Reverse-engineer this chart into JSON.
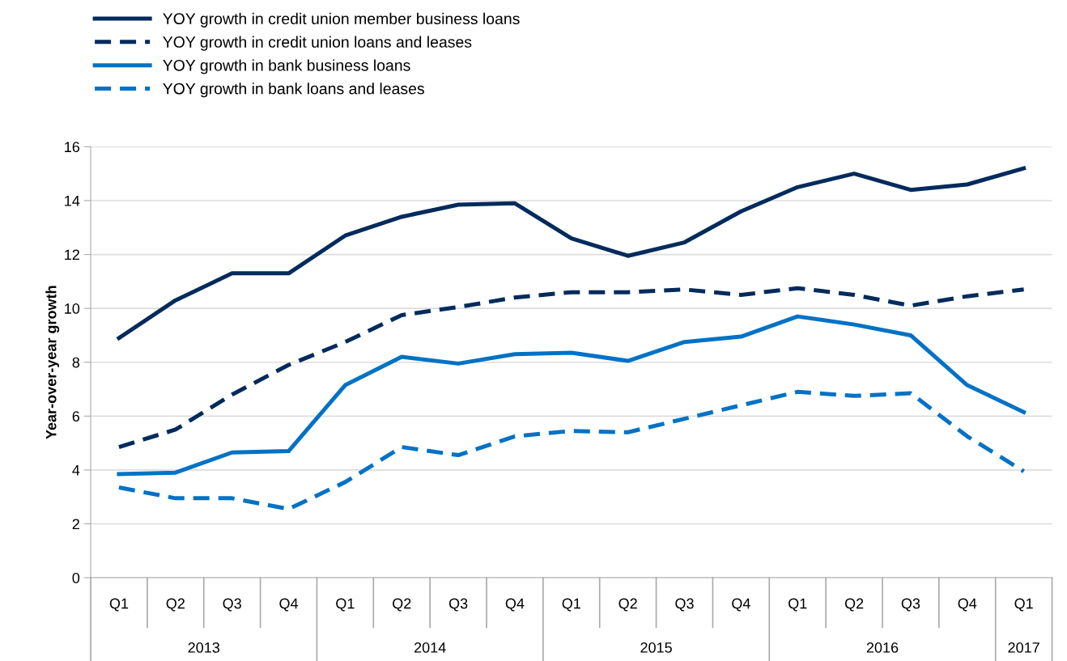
{
  "chart_data": {
    "type": "line",
    "ylabel": "Year-over-year growth",
    "categories": [
      "Q1",
      "Q2",
      "Q3",
      "Q4",
      "Q1",
      "Q2",
      "Q3",
      "Q4",
      "Q1",
      "Q2",
      "Q3",
      "Q4",
      "Q1",
      "Q2",
      "Q3",
      "Q4",
      "Q1"
    ],
    "annotations": [
      "2013",
      "2014",
      "2015",
      "2016",
      "2017"
    ],
    "series": [
      {
        "name": "YOY growth in credit union member business loans",
        "color": "#002b5c",
        "line_style": "solid",
        "values": [
          8.9,
          10.3,
          11.3,
          11.3,
          12.7,
          13.4,
          13.85,
          13.9,
          12.6,
          11.95,
          12.45,
          13.6,
          14.5,
          15.0,
          14.4,
          14.6,
          15.2
        ]
      },
      {
        "name": "YOY growth in credit union loans and leases",
        "color": "#002b5c",
        "line_style": "dashed",
        "values": [
          4.85,
          5.5,
          6.8,
          7.9,
          8.75,
          9.75,
          10.05,
          10.4,
          10.6,
          10.6,
          10.7,
          10.5,
          10.75,
          10.5,
          10.1,
          10.45,
          10.7
        ]
      },
      {
        "name": "YOY growth in bank business loans",
        "color": "#0072c6",
        "line_style": "solid",
        "values": [
          3.85,
          3.9,
          4.65,
          4.7,
          7.15,
          8.2,
          7.95,
          8.3,
          8.35,
          8.05,
          8.75,
          8.95,
          9.7,
          9.4,
          9.0,
          7.15,
          6.15
        ]
      },
      {
        "name": "YOY growth in bank loans and leases",
        "color": "#0072c6",
        "line_style": "dashed",
        "values": [
          3.35,
          2.95,
          2.95,
          2.55,
          3.55,
          4.85,
          4.55,
          5.25,
          5.45,
          5.4,
          5.9,
          6.4,
          6.9,
          6.75,
          6.85,
          5.25,
          3.95
        ]
      }
    ],
    "ylim": [
      0,
      16
    ],
    "yticks": [
      0,
      2,
      4,
      6,
      8,
      10,
      12,
      14,
      16
    ],
    "grid": "y",
    "legend": "top left",
    "marker": "none"
  }
}
